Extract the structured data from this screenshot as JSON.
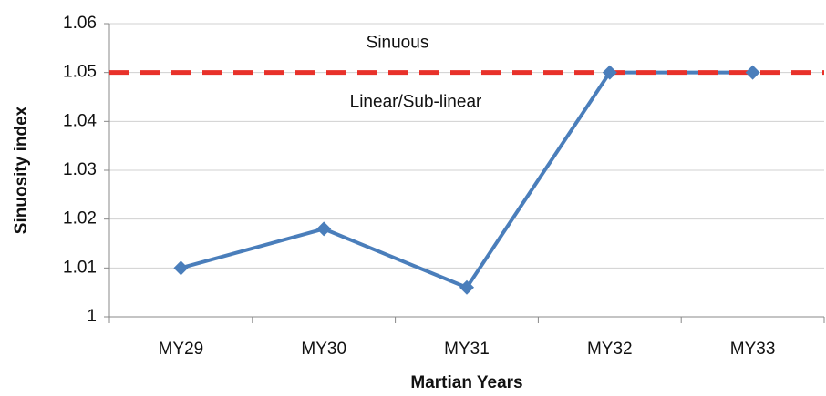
{
  "chart_data": {
    "type": "line",
    "categories": [
      "MY29",
      "MY30",
      "MY31",
      "MY32",
      "MY33"
    ],
    "series": [
      {
        "name": "Sinuosity index",
        "color": "#4a7ebb",
        "values": [
          1.01,
          1.018,
          1.006,
          1.05,
          1.05
        ]
      }
    ],
    "ylim": [
      1,
      1.06
    ],
    "yticks": [
      1,
      1.01,
      1.02,
      1.03,
      1.04,
      1.05,
      1.06
    ],
    "grid": true,
    "xlabel": "Martian Years",
    "ylabel": "Sinuosity index",
    "reference_line": {
      "value": 1.05,
      "color": "#e8312a"
    },
    "annotations": [
      "Sinuous",
      "Linear/Sub-linear"
    ]
  }
}
